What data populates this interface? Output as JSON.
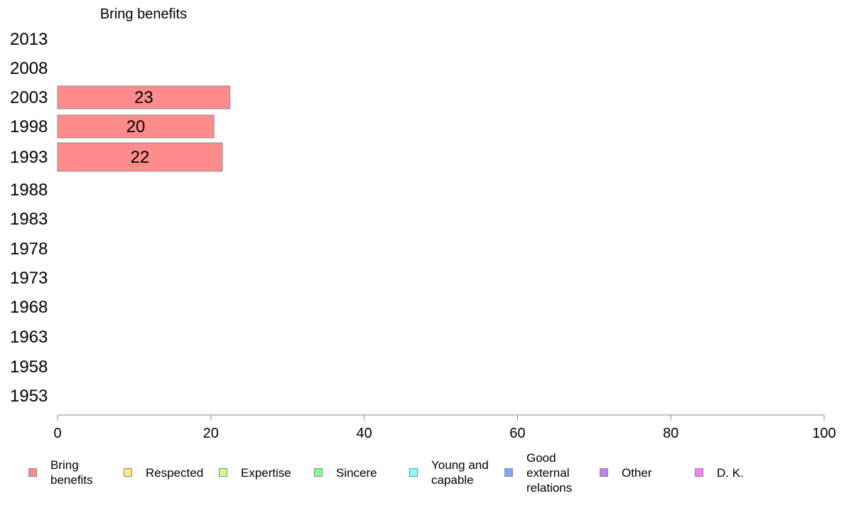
{
  "chart_data": {
    "type": "bar",
    "orientation": "horizontal",
    "series_title": "Bring benefits",
    "categories": [
      "2013",
      "2008",
      "2003",
      "1998",
      "1993",
      "1988",
      "1983",
      "1978",
      "1973",
      "1968",
      "1963",
      "1958",
      "1953"
    ],
    "series": [
      {
        "name": "Bring benefits",
        "values": [
          null,
          null,
          22.5,
          20.4,
          21.5,
          null,
          null,
          null,
          null,
          null,
          null,
          null,
          null
        ],
        "labels": [
          "",
          "",
          "23",
          "20",
          "22",
          "",
          "",
          "",
          "",
          "",
          "",
          "",
          ""
        ]
      }
    ],
    "xlim": [
      0,
      100
    ],
    "xticks": [
      "0",
      "20",
      "40",
      "60",
      "80",
      "100"
    ],
    "grid": false,
    "legend_position": "bottom",
    "legend": [
      {
        "label": "Bring benefits",
        "color": "#ff8c8c"
      },
      {
        "label": "Respected",
        "color": "#ffe680"
      },
      {
        "label": "Expertise",
        "color": "#ccff80"
      },
      {
        "label": "Sincere",
        "color": "#80ff99"
      },
      {
        "label": "Young and capable",
        "color": "#80ffff"
      },
      {
        "label": "Good external relations",
        "color": "#80a6ff"
      },
      {
        "label": "Other",
        "color": "#bf80ff"
      },
      {
        "label": "D. K.",
        "color": "#ff80f2"
      }
    ]
  }
}
